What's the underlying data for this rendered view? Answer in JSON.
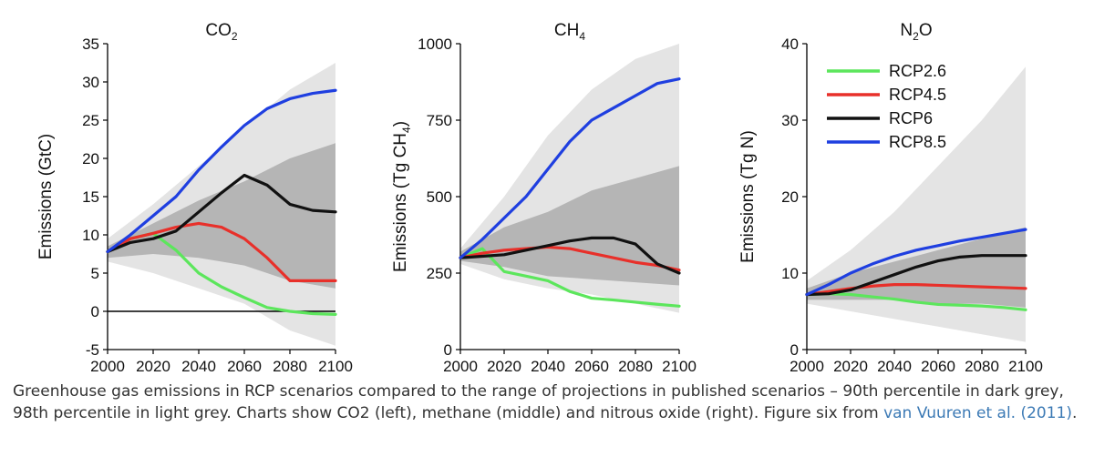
{
  "chart_data": [
    {
      "type": "line",
      "title": "CO",
      "title_subscript": "2",
      "ylabel": "Emissions (GtC)",
      "xlabel": "",
      "xlim": [
        2000,
        2100
      ],
      "ylim": [
        -5,
        35
      ],
      "xticks": [
        2000,
        2020,
        2040,
        2060,
        2080,
        2100
      ],
      "yticks": [
        -5,
        0,
        5,
        10,
        15,
        20,
        25,
        30,
        35
      ],
      "zero_line": true,
      "bands": {
        "light": {
          "x": [
            2000,
            2020,
            2040,
            2060,
            2080,
            2100
          ],
          "lower": [
            6.5,
            5,
            3,
            1,
            -2.5,
            -4.5
          ],
          "upper": [
            9.5,
            14,
            19,
            24,
            29,
            32.5
          ]
        },
        "dark": {
          "x": [
            2000,
            2020,
            2040,
            2060,
            2080,
            2100
          ],
          "lower": [
            7,
            7.5,
            7,
            6,
            4,
            3
          ],
          "upper": [
            8.5,
            11.5,
            14.5,
            17,
            20,
            22
          ]
        }
      },
      "series": [
        {
          "name": "RCP2.6",
          "color": "#5ce65c",
          "x": [
            2000,
            2010,
            2020,
            2030,
            2040,
            2050,
            2060,
            2070,
            2080,
            2090,
            2100
          ],
          "values": [
            7.8,
            9.5,
            10.2,
            8,
            5,
            3.2,
            1.8,
            0.5,
            0,
            -0.3,
            -0.4
          ]
        },
        {
          "name": "RCP4.5",
          "color": "#e8302a",
          "x": [
            2000,
            2010,
            2020,
            2030,
            2040,
            2050,
            2060,
            2070,
            2080,
            2090,
            2100
          ],
          "values": [
            7.8,
            9.5,
            10.2,
            11,
            11.5,
            11,
            9.5,
            7,
            4,
            4,
            4
          ]
        },
        {
          "name": "RCP6",
          "color": "#111111",
          "x": [
            2000,
            2010,
            2020,
            2030,
            2040,
            2050,
            2060,
            2070,
            2080,
            2090,
            2100
          ],
          "values": [
            7.8,
            9,
            9.5,
            10.5,
            13,
            15.5,
            17.8,
            16.5,
            14,
            13.2,
            13
          ]
        },
        {
          "name": "RCP8.5",
          "color": "#1f3fe0",
          "x": [
            2000,
            2010,
            2020,
            2030,
            2040,
            2050,
            2060,
            2070,
            2080,
            2090,
            2100
          ],
          "values": [
            7.8,
            10,
            12.5,
            15,
            18.5,
            21.5,
            24.3,
            26.5,
            27.8,
            28.5,
            28.9
          ]
        }
      ]
    },
    {
      "type": "line",
      "title": "CH",
      "title_subscript": "4",
      "ylabel": "Emissions (Tg CH",
      "ylabel_subscript": "4",
      "ylabel_suffix": ")",
      "xlabel": "",
      "xlim": [
        2000,
        2100
      ],
      "ylim": [
        0,
        1000
      ],
      "xticks": [
        2000,
        2020,
        2040,
        2060,
        2080,
        2100
      ],
      "yticks": [
        0,
        250,
        500,
        750,
        1000
      ],
      "zero_line": false,
      "bands": {
        "light": {
          "x": [
            2000,
            2020,
            2040,
            2060,
            2080,
            2100
          ],
          "lower": [
            280,
            230,
            200,
            180,
            150,
            120
          ],
          "upper": [
            330,
            500,
            700,
            850,
            950,
            1000
          ]
        },
        "dark": {
          "x": [
            2000,
            2020,
            2040,
            2060,
            2080,
            2100
          ],
          "lower": [
            290,
            270,
            240,
            230,
            220,
            210
          ],
          "upper": [
            320,
            400,
            450,
            520,
            560,
            600
          ]
        }
      },
      "series": [
        {
          "name": "RCP2.6",
          "color": "#5ce65c",
          "x": [
            2000,
            2010,
            2020,
            2030,
            2040,
            2050,
            2060,
            2070,
            2080,
            2090,
            2100
          ],
          "values": [
            300,
            330,
            255,
            240,
            225,
            190,
            168,
            162,
            155,
            148,
            142
          ]
        },
        {
          "name": "RCP4.5",
          "color": "#e8302a",
          "x": [
            2000,
            2010,
            2020,
            2030,
            2040,
            2050,
            2060,
            2070,
            2080,
            2090,
            2100
          ],
          "values": [
            300,
            315,
            325,
            330,
            335,
            330,
            315,
            300,
            285,
            275,
            260
          ]
        },
        {
          "name": "RCP6",
          "color": "#111111",
          "x": [
            2000,
            2010,
            2020,
            2030,
            2040,
            2050,
            2060,
            2070,
            2080,
            2090,
            2100
          ],
          "values": [
            300,
            305,
            310,
            325,
            340,
            355,
            365,
            365,
            345,
            280,
            250
          ]
        },
        {
          "name": "RCP8.5",
          "color": "#1f3fe0",
          "x": [
            2000,
            2010,
            2020,
            2030,
            2040,
            2050,
            2060,
            2070,
            2080,
            2090,
            2100
          ],
          "values": [
            300,
            360,
            430,
            500,
            590,
            680,
            750,
            790,
            830,
            870,
            885
          ]
        }
      ]
    },
    {
      "type": "line",
      "title": "N",
      "title_subscript": "2",
      "title_suffix": "O",
      "ylabel": "Emissions (Tg N)",
      "xlabel": "",
      "xlim": [
        2000,
        2100
      ],
      "ylim": [
        0,
        40
      ],
      "xticks": [
        2000,
        2020,
        2040,
        2060,
        2080,
        2100
      ],
      "yticks": [
        0,
        10,
        20,
        30,
        40
      ],
      "zero_line": false,
      "legend": {
        "placement": "top-left",
        "entries": [
          "RCP2.6",
          "RCP4.5",
          "RCP6",
          "RCP8.5"
        ]
      },
      "bands": {
        "light": {
          "x": [
            2000,
            2020,
            2040,
            2060,
            2080,
            2100
          ],
          "lower": [
            6,
            5,
            4,
            3,
            2,
            1
          ],
          "upper": [
            9,
            13,
            18,
            24,
            30,
            37
          ]
        },
        "dark": {
          "x": [
            2000,
            2020,
            2040,
            2060,
            2080,
            2100
          ],
          "lower": [
            6.5,
            6.5,
            6.5,
            6,
            6,
            5.5
          ],
          "upper": [
            8,
            10,
            11.5,
            13,
            14.5,
            16
          ]
        }
      },
      "series": [
        {
          "name": "RCP2.6",
          "color": "#5ce65c",
          "x": [
            2000,
            2010,
            2020,
            2030,
            2040,
            2050,
            2060,
            2070,
            2080,
            2090,
            2100
          ],
          "values": [
            7.2,
            7.3,
            7.2,
            6.9,
            6.6,
            6.2,
            5.9,
            5.8,
            5.7,
            5.5,
            5.2
          ]
        },
        {
          "name": "RCP4.5",
          "color": "#e8302a",
          "x": [
            2000,
            2010,
            2020,
            2030,
            2040,
            2050,
            2060,
            2070,
            2080,
            2090,
            2100
          ],
          "values": [
            7.2,
            7.6,
            8.0,
            8.3,
            8.5,
            8.5,
            8.4,
            8.3,
            8.2,
            8.1,
            8.0
          ]
        },
        {
          "name": "RCP6",
          "color": "#111111",
          "x": [
            2000,
            2010,
            2020,
            2030,
            2040,
            2050,
            2060,
            2070,
            2080,
            2090,
            2100
          ],
          "values": [
            7.2,
            7.3,
            7.8,
            8.8,
            9.8,
            10.8,
            11.6,
            12.1,
            12.3,
            12.3,
            12.3
          ]
        },
        {
          "name": "RCP8.5",
          "color": "#1f3fe0",
          "x": [
            2000,
            2010,
            2020,
            2030,
            2040,
            2050,
            2060,
            2070,
            2080,
            2090,
            2100
          ],
          "values": [
            7.2,
            8.5,
            10,
            11.2,
            12.2,
            13.0,
            13.6,
            14.2,
            14.7,
            15.2,
            15.7
          ]
        }
      ]
    }
  ],
  "caption": {
    "text": "Greenhouse gas emissions in RCP scenarios compared to the range of projections in published scenarios – 90th percentile in dark grey, 98th percentile in light grey. Charts show CO2 (left), methane (middle) and nitrous oxide (right). Figure six from ",
    "link_text": "van Vuuren et al. (2011)",
    "end": "."
  },
  "colors": {
    "light_band": "#e4e4e4",
    "dark_band": "#b5b5b5",
    "link": "#3c7ab5"
  }
}
